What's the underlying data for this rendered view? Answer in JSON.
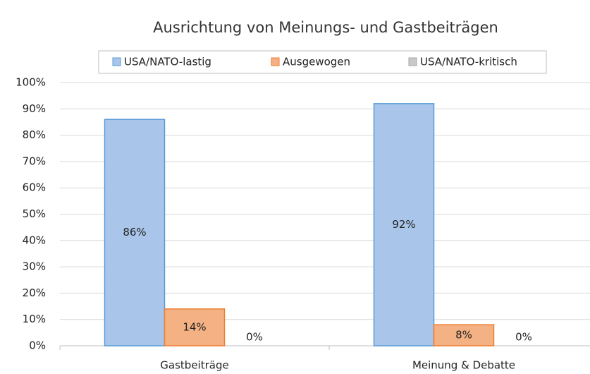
{
  "chart_data": {
    "type": "bar",
    "title": "Ausrichtung von Meinungs- und Gastbeiträgen",
    "categories": [
      "Gastbeiträge",
      "Meinung & Debatte"
    ],
    "series": [
      {
        "name": "USA/NATO-lastig",
        "color": "#a9c6ea",
        "values": [
          86,
          92
        ],
        "value_labels": [
          "86%",
          "92%"
        ]
      },
      {
        "name": "Ausgewogen",
        "color": "#f4b183",
        "values": [
          14,
          8
        ],
        "value_labels": [
          "14%",
          "8%"
        ]
      },
      {
        "name": "USA/NATO-kritisch",
        "color": "#c9c9c9",
        "values": [
          0,
          0
        ],
        "value_labels": [
          "0%",
          "0%"
        ]
      }
    ],
    "ylim": [
      0,
      100
    ],
    "yticks": [
      {
        "value": 0,
        "label": "0%"
      },
      {
        "value": 10,
        "label": "10%"
      },
      {
        "value": 20,
        "label": "20%"
      },
      {
        "value": 30,
        "label": "30%"
      },
      {
        "value": 40,
        "label": "40%"
      },
      {
        "value": 50,
        "label": "50%"
      },
      {
        "value": 60,
        "label": "60%"
      },
      {
        "value": 70,
        "label": "70%"
      },
      {
        "value": 80,
        "label": "80%"
      },
      {
        "value": 90,
        "label": "90%"
      },
      {
        "value": 100,
        "label": "100%"
      }
    ],
    "grid": true,
    "legend": "top"
  }
}
